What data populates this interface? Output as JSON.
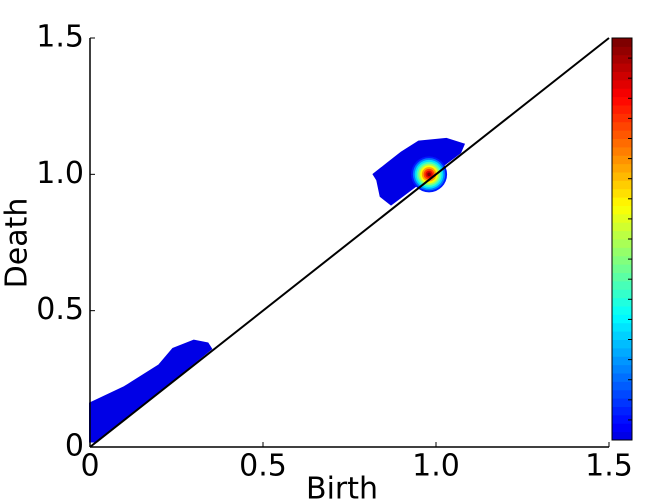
{
  "chart_data": {
    "type": "density",
    "xlabel": "Birth",
    "ylabel": "Death",
    "xlim": [
      0,
      1.5
    ],
    "ylim": [
      0,
      1.5
    ],
    "xticks": [
      0,
      0.5,
      {
        "value": 1,
        "label": "1.0"
      },
      1.5
    ],
    "yticks": [
      0,
      0.5,
      {
        "value": 1,
        "label": "1.0"
      },
      1.5
    ],
    "diagonal": true,
    "colormap": "jet",
    "colorbar": true,
    "regions": [
      {
        "x": [
          0,
          0,
          0.1,
          0.2,
          0.24,
          0.3,
          0.34,
          0.35,
          0.02
        ],
        "y": [
          0.02,
          0.16,
          0.22,
          0.3,
          0.36,
          0.39,
          0.38,
          0.36,
          0.02
        ]
      },
      {
        "x": [
          0.82,
          0.86,
          0.9,
          0.95,
          1.03,
          1.08,
          1.07,
          0.87,
          0.84,
          0.83
        ],
        "y": [
          1.0,
          1.04,
          1.08,
          1.12,
          1.13,
          1.11,
          1.08,
          0.89,
          0.92,
          0.98
        ]
      }
    ],
    "peak": {
      "x": 0.98,
      "y": 1.0
    }
  }
}
